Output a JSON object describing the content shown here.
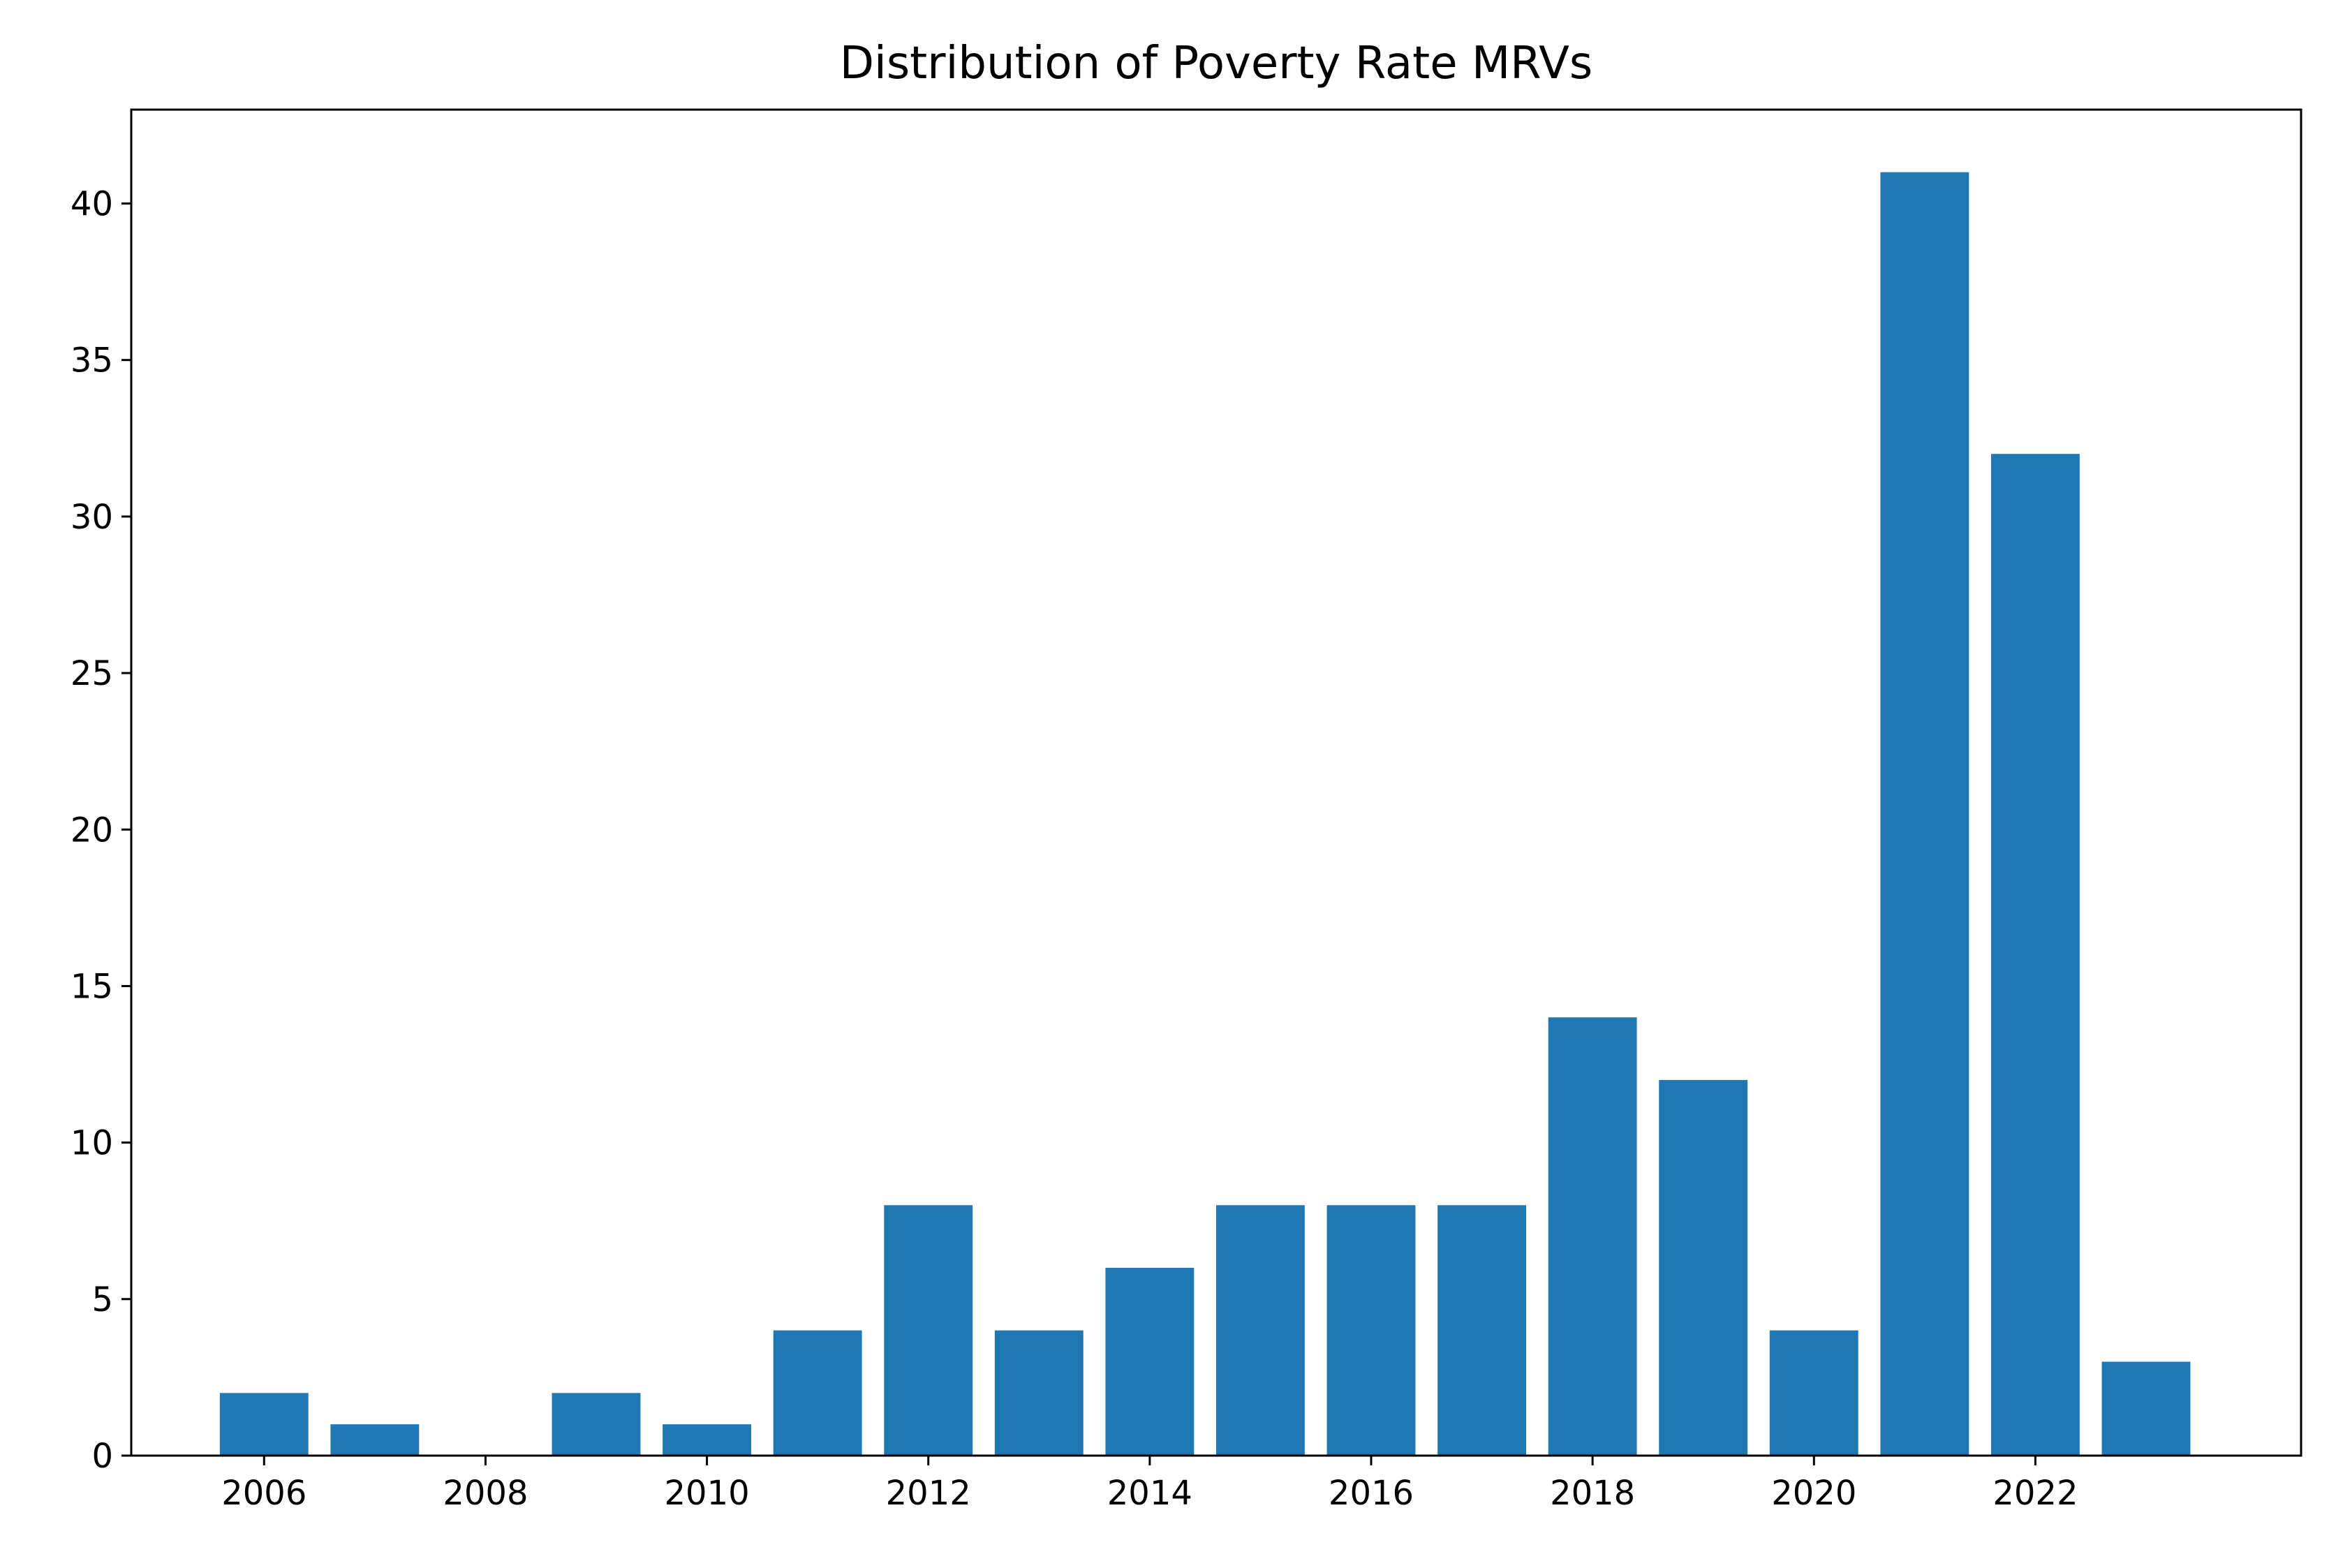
{
  "chart_data": {
    "type": "bar",
    "title": "Distribution of Poverty Rate MRVs",
    "xlabel": "",
    "ylabel": "",
    "x": [
      2006,
      2007,
      2008,
      2009,
      2010,
      2011,
      2012,
      2013,
      2014,
      2015,
      2016,
      2017,
      2018,
      2019,
      2020,
      2021,
      2022,
      2023
    ],
    "values": [
      2,
      1,
      0,
      2,
      1,
      4,
      8,
      4,
      6,
      8,
      8,
      8,
      14,
      12,
      4,
      41,
      32,
      3
    ],
    "xlim": [
      2004.8,
      2024.4
    ],
    "ylim": [
      0,
      43
    ],
    "xticks": [
      2006,
      2008,
      2010,
      2012,
      2014,
      2016,
      2018,
      2020,
      2022
    ],
    "yticks": [
      0,
      5,
      10,
      15,
      20,
      25,
      30,
      35,
      40
    ],
    "bar_color": "#1f77b4",
    "grid": false,
    "legend": "none"
  }
}
